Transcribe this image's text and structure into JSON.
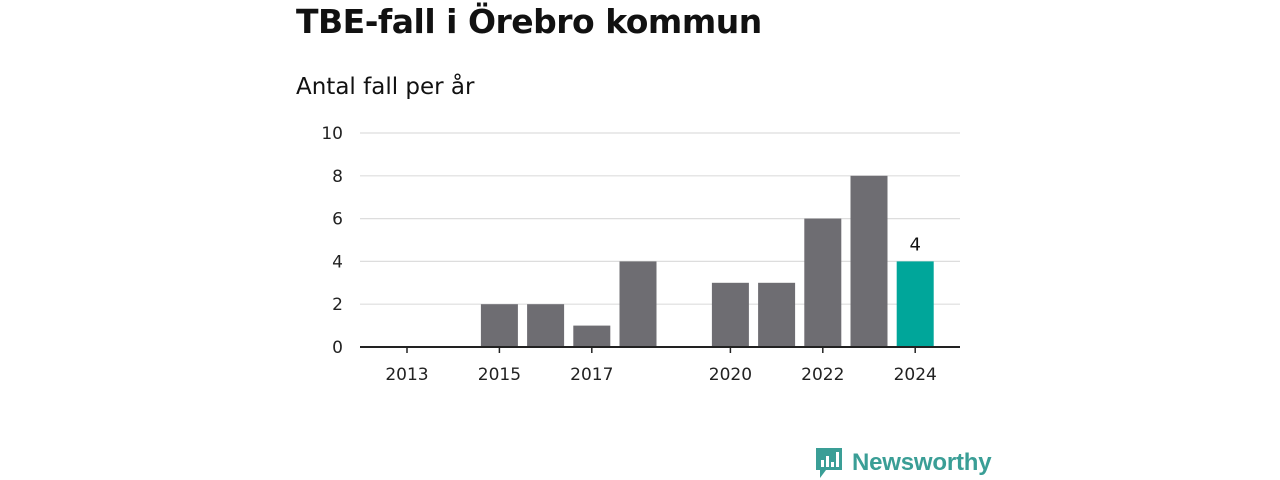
{
  "header": {
    "title": "TBE-fall i Örebro kommun",
    "subtitle": "Antal fall per år"
  },
  "colors": {
    "bar": "#6e6d72",
    "highlight": "#00a69a",
    "grid": "#dddddd",
    "axis": "#222222",
    "logo": "#3a9e96"
  },
  "chart_data": {
    "type": "bar",
    "title": "TBE-fall i Örebro kommun",
    "subtitle": "Antal fall per år",
    "xlabel": "",
    "ylabel": "",
    "categories": [
      2013,
      2014,
      2015,
      2016,
      2017,
      2018,
      2019,
      2020,
      2021,
      2022,
      2023,
      2024
    ],
    "values": [
      0,
      0,
      2,
      2,
      1,
      4,
      0,
      3,
      3,
      6,
      8,
      4
    ],
    "highlight_category": 2024,
    "data_labels": [
      {
        "category": 2024,
        "text": "4"
      }
    ],
    "ylim": [
      0,
      10
    ],
    "yticks": [
      0,
      2,
      4,
      6,
      8,
      10
    ],
    "xticks": [
      2013,
      2015,
      2017,
      2020,
      2022,
      2024
    ],
    "grid": true,
    "legend": "none"
  },
  "brand": {
    "name": "Newsworthy",
    "icon": "bar-chart-speech-bubble-icon"
  }
}
